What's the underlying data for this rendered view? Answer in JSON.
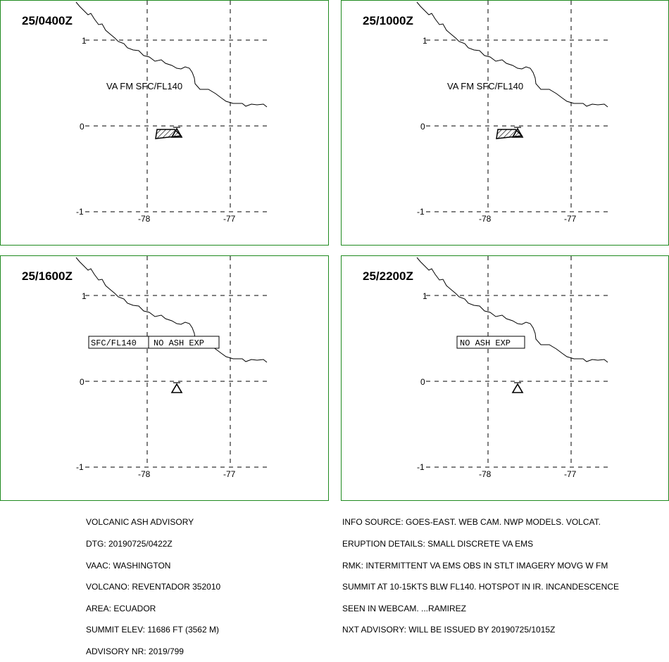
{
  "map": {
    "x_ticks": [
      "-78",
      "-77"
    ],
    "y_ticks": [
      "1",
      "0",
      "-1"
    ],
    "volcano_icon": "volcano-triangle-icon"
  },
  "panels": [
    {
      "time": "25/0400Z",
      "label": "VA FM SFC/FL140",
      "ash": true,
      "boxed": []
    },
    {
      "time": "25/1000Z",
      "label": "VA FM SFC/FL140",
      "ash": true,
      "boxed": []
    },
    {
      "time": "25/1600Z",
      "label": "",
      "ash": false,
      "boxed": [
        "SFC/FL140",
        "NO ASH EXP"
      ]
    },
    {
      "time": "25/2200Z",
      "label": "",
      "ash": false,
      "boxed": [
        "NO ASH EXP"
      ]
    }
  ],
  "advisory_left": [
    "VOLCANIC ASH ADVISORY",
    "DTG: 20190725/0422Z",
    "VAAC: WASHINGTON",
    "VOLCANO: REVENTADOR 352010",
    "AREA: ECUADOR",
    "SUMMIT ELEV: 11686 FT (3562 M)",
    "ADVISORY NR: 2019/799"
  ],
  "advisory_right": [
    "INFO SOURCE: GOES-EAST. WEB CAM. NWP MODELS. VOLCAT.",
    "ERUPTION DETAILS: SMALL DISCRETE VA EMS",
    "RMK: INTERMITTENT VA EMS OBS IN STLT IMAGERY MOVG W FM",
    "SUMMIT AT 10-15KTS BLW FL140. HOTSPOT IN IR. INCANDESCENCE",
    "SEEN IN WEBCAM. ...RAMIREZ",
    "NXT ADVISORY: WILL BE ISSUED BY 20190725/1015Z"
  ]
}
